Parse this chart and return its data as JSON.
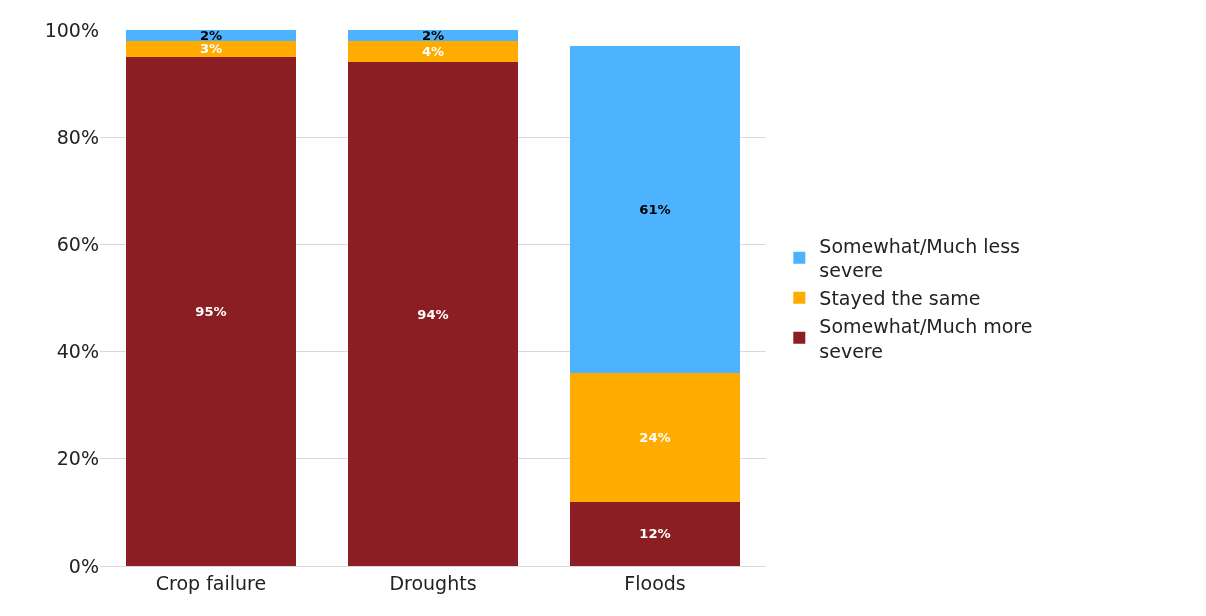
{
  "chart_data": {
    "type": "bar",
    "stacked": true,
    "categories": [
      "Crop failure",
      "Droughts",
      "Floods"
    ],
    "series": [
      {
        "name": "Somewhat/Much more severe",
        "color": "#8b1e23",
        "values": [
          95,
          94,
          12
        ],
        "value_labels": [
          "95%",
          "94%",
          "12%"
        ]
      },
      {
        "name": "Stayed the same",
        "color": "#ffab00",
        "values": [
          3,
          4,
          24
        ],
        "value_labels": [
          "3%",
          "4%",
          "24%"
        ]
      },
      {
        "name": "Somewhat/Much less severe",
        "color": "#4db3ff",
        "values": [
          2,
          2,
          61
        ],
        "value_labels": [
          "2%",
          "2%",
          "61%"
        ]
      }
    ],
    "ylim": [
      0,
      100
    ],
    "yticks": [
      {
        "value": 0,
        "label": "0%"
      },
      {
        "value": 20,
        "label": "20%"
      },
      {
        "value": 40,
        "label": "40%"
      },
      {
        "value": 60,
        "label": "60%"
      },
      {
        "value": 80,
        "label": "80%"
      },
      {
        "value": 100,
        "label": "100%"
      }
    ],
    "grid": "y",
    "legend": "right"
  }
}
